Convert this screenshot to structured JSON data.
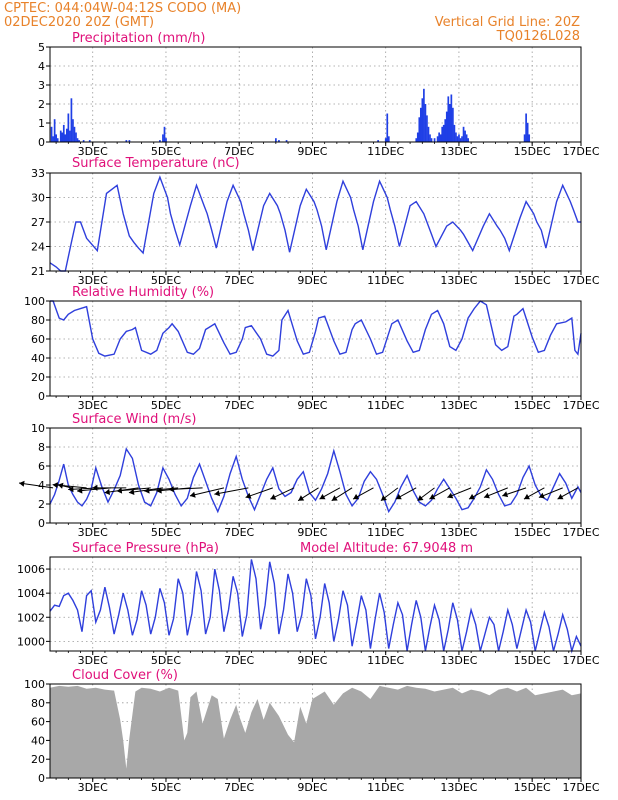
{
  "header": {
    "line1_left": "CPTEC:   044:04W-04:12S   CODO (MA)",
    "line2_left": "02DEC2020 20Z (GMT)",
    "line1_right": "Vertical Grid Line: 20Z",
    "line2_right": "TQ0126L028"
  },
  "colors": {
    "header": "#e8822a",
    "title": "#e0107a",
    "series": "#2f3fdc",
    "cloud": "#a8a8a8"
  },
  "x_axis": {
    "tick_labels": [
      "3DEC",
      "5DEC",
      "7DEC",
      "9DEC",
      "11DEC",
      "13DEC",
      "15DEC",
      "17DEC"
    ],
    "range_hours_from_start": [
      0,
      348
    ]
  },
  "chart_data": [
    {
      "type": "bar",
      "title": "Precipitation (mm/h)",
      "ylim": [
        0,
        5
      ],
      "yticks": [
        "0",
        "1",
        "2",
        "3",
        "4",
        "5"
      ],
      "x": [
        1,
        2,
        3,
        4,
        5,
        7,
        8,
        9,
        10,
        11,
        12,
        13,
        14,
        15,
        16,
        17,
        18,
        19,
        22,
        26,
        50,
        52,
        72,
        74,
        75,
        76,
        148,
        150,
        155,
        215,
        220,
        221,
        222,
        240,
        241,
        242,
        243,
        244,
        245,
        246,
        247,
        248,
        249,
        250,
        252,
        254,
        255,
        256,
        257,
        258,
        259,
        260,
        261,
        262,
        263,
        264,
        265,
        266,
        267,
        268,
        269,
        270,
        271,
        272,
        273,
        274,
        311,
        312,
        313,
        314
      ],
      "values": [
        0.8,
        0.3,
        1.2,
        0.4,
        0.2,
        0.6,
        0.5,
        0.9,
        0.4,
        0.7,
        1.5,
        0.6,
        2.3,
        1.2,
        0.8,
        0.5,
        0.2,
        0.1,
        0.1,
        0.1,
        0.1,
        0.1,
        0.1,
        0.4,
        0.8,
        0.2,
        0.2,
        0.1,
        0.1,
        0.1,
        0.2,
        1.5,
        0.3,
        0.2,
        0.5,
        1.3,
        1.8,
        2.3,
        2.8,
        2.0,
        1.4,
        0.8,
        0.4,
        0.2,
        0.2,
        0.3,
        0.5,
        0.4,
        0.8,
        0.9,
        1.2,
        1.6,
        2.4,
        2.0,
        2.5,
        1.8,
        0.9,
        0.5,
        0.3,
        0.4,
        0.2,
        0.3,
        0.8,
        0.6,
        0.4,
        0.2,
        0.4,
        1.5,
        1.0,
        0.4
      ]
    },
    {
      "type": "line",
      "title": "Surface Temperature (nC)",
      "ylim": [
        21,
        33
      ],
      "yticks": [
        "21",
        "24",
        "27",
        "30",
        "33"
      ],
      "x": [
        0,
        4,
        7,
        10,
        14,
        17,
        20,
        24,
        31,
        37,
        44,
        48,
        52,
        55,
        58,
        61,
        68,
        72,
        77,
        79,
        82,
        85,
        92,
        96,
        101,
        103,
        106,
        109,
        116,
        120,
        125,
        127,
        130,
        133,
        140,
        144,
        149,
        151,
        154,
        157,
        164,
        168,
        173,
        175,
        178,
        181,
        188,
        192,
        197,
        199,
        202,
        205,
        212,
        216,
        221,
        223,
        226,
        229,
        236,
        240,
        245,
        247,
        250,
        253,
        260,
        264,
        269,
        271,
        274,
        277,
        284,
        288,
        293,
        295,
        298,
        301,
        308,
        312,
        317,
        319,
        322,
        325,
        332,
        336,
        341,
        343,
        346,
        348
      ],
      "values": [
        22.0,
        21.5,
        21.0,
        21.0,
        24.5,
        27.0,
        27.0,
        25.0,
        23.5,
        30.5,
        31.5,
        28.0,
        25.3,
        24.5,
        23.8,
        23.2,
        30.5,
        32.5,
        30.0,
        28.0,
        26.0,
        24.2,
        29.0,
        31.5,
        29.0,
        28.0,
        26.0,
        23.8,
        29.5,
        31.5,
        29.5,
        28.0,
        26.0,
        23.5,
        29.0,
        30.5,
        29.0,
        28.0,
        26.0,
        23.3,
        29.0,
        31.0,
        29.5,
        28.5,
        26.5,
        23.6,
        29.5,
        32.0,
        30.0,
        28.5,
        26.5,
        23.6,
        29.5,
        32.0,
        30.0,
        28.5,
        26.5,
        24.0,
        29.0,
        29.5,
        28.0,
        27.0,
        25.5,
        24.0,
        26.5,
        27.0,
        26.0,
        25.5,
        24.5,
        23.5,
        26.5,
        28.0,
        26.5,
        26.0,
        25.0,
        23.5,
        27.5,
        29.5,
        28.0,
        27.0,
        26.0,
        23.8,
        29.5,
        31.5,
        29.5,
        28.5,
        27.0,
        27.0
      ]
    },
    {
      "type": "line",
      "title": "Relative Humidity (%)",
      "ylim": [
        0,
        100
      ],
      "yticks": [
        "0",
        "20",
        "40",
        "60",
        "80",
        "100"
      ],
      "x": [
        0,
        2,
        6,
        9,
        12,
        16,
        20,
        24,
        28,
        32,
        36,
        42,
        46,
        50,
        54,
        56,
        60,
        66,
        70,
        74,
        78,
        80,
        84,
        90,
        94,
        98,
        102,
        104,
        108,
        114,
        118,
        122,
        126,
        128,
        132,
        138,
        142,
        146,
        150,
        152,
        156,
        162,
        166,
        170,
        174,
        176,
        180,
        186,
        190,
        194,
        198,
        200,
        204,
        210,
        214,
        218,
        222,
        224,
        228,
        234,
        238,
        242,
        246,
        250,
        254,
        258,
        262,
        266,
        270,
        274,
        278,
        282,
        286,
        292,
        296,
        300,
        304,
        306,
        310,
        316,
        320,
        324,
        328,
        332,
        338,
        342,
        344,
        346,
        348
      ],
      "values": [
        100,
        100,
        82,
        80,
        86,
        90,
        92,
        94,
        60,
        45,
        42,
        44,
        60,
        68,
        70,
        72,
        48,
        44,
        48,
        66,
        72,
        76,
        68,
        46,
        44,
        50,
        70,
        72,
        76,
        56,
        44,
        46,
        60,
        72,
        74,
        60,
        44,
        42,
        48,
        80,
        90,
        58,
        44,
        46,
        68,
        82,
        84,
        58,
        44,
        46,
        70,
        76,
        80,
        60,
        44,
        46,
        66,
        76,
        80,
        58,
        46,
        48,
        70,
        86,
        90,
        76,
        52,
        48,
        60,
        82,
        92,
        100,
        96,
        54,
        48,
        52,
        84,
        86,
        92,
        62,
        46,
        48,
        64,
        76,
        78,
        82,
        48,
        44,
        66
      ]
    },
    {
      "type": "line",
      "title": "Surface Wind (m/s)",
      "ylim": [
        0,
        10
      ],
      "yticks": [
        "0",
        "2",
        "4",
        "6",
        "8",
        "10"
      ],
      "x": [
        0,
        3,
        6,
        9,
        12,
        15,
        18,
        21,
        24,
        27,
        30,
        34,
        38,
        42,
        46,
        50,
        54,
        58,
        62,
        66,
        70,
        74,
        78,
        82,
        86,
        90,
        94,
        98,
        102,
        106,
        110,
        114,
        118,
        122,
        126,
        130,
        134,
        138,
        142,
        146,
        150,
        154,
        158,
        162,
        166,
        170,
        174,
        178,
        182,
        186,
        190,
        194,
        198,
        202,
        206,
        210,
        214,
        218,
        222,
        226,
        230,
        234,
        238,
        242,
        246,
        250,
        254,
        258,
        262,
        266,
        270,
        274,
        278,
        282,
        286,
        290,
        294,
        298,
        302,
        306,
        310,
        314,
        318,
        322,
        326,
        330,
        334,
        338,
        342,
        346,
        348
      ],
      "values": [
        2.0,
        3.0,
        4.5,
        6.2,
        4.0,
        3.0,
        2.2,
        1.8,
        2.5,
        3.6,
        5.8,
        3.8,
        2.2,
        3.5,
        5.0,
        7.8,
        6.8,
        4.0,
        2.2,
        1.8,
        3.2,
        5.8,
        4.6,
        3.0,
        1.8,
        2.6,
        4.8,
        6.2,
        4.4,
        2.6,
        1.2,
        2.8,
        5.2,
        7.0,
        4.6,
        2.8,
        1.4,
        3.0,
        4.6,
        5.8,
        3.6,
        2.8,
        3.2,
        4.6,
        5.4,
        3.2,
        2.4,
        3.6,
        5.2,
        7.6,
        5.4,
        3.0,
        1.8,
        2.6,
        4.4,
        5.4,
        4.6,
        3.0,
        1.2,
        2.2,
        3.8,
        5.0,
        3.4,
        2.2,
        1.8,
        2.4,
        3.6,
        4.6,
        3.6,
        2.6,
        1.4,
        1.6,
        2.6,
        3.8,
        5.6,
        4.6,
        3.0,
        1.8,
        2.0,
        3.0,
        4.8,
        6.0,
        4.0,
        2.8,
        2.4,
        3.8,
        5.2,
        4.2,
        2.6,
        3.8,
        3.2
      ]
    },
    {
      "type": "line",
      "title": "Surface Pressure (hPa)",
      "annotation": "Model Altitude: 67.9048 m",
      "ylim": [
        999.2,
        1007
      ],
      "yticks": [
        "1000",
        "1002",
        "1004",
        "1006"
      ],
      "x": [
        0,
        3,
        6,
        9,
        12,
        15,
        18,
        21,
        24,
        27,
        30,
        33,
        36,
        39,
        42,
        45,
        48,
        51,
        54,
        57,
        60,
        63,
        66,
        69,
        72,
        75,
        78,
        81,
        84,
        87,
        90,
        93,
        96,
        99,
        102,
        105,
        108,
        111,
        114,
        117,
        120,
        123,
        126,
        129,
        132,
        135,
        138,
        141,
        144,
        147,
        150,
        153,
        156,
        159,
        162,
        165,
        168,
        171,
        174,
        177,
        180,
        183,
        186,
        189,
        192,
        195,
        198,
        201,
        204,
        207,
        210,
        213,
        216,
        219,
        222,
        225,
        228,
        231,
        234,
        237,
        240,
        243,
        246,
        249,
        252,
        255,
        258,
        261,
        264,
        267,
        270,
        273,
        276,
        279,
        282,
        285,
        288,
        291,
        294,
        297,
        300,
        303,
        306,
        309,
        312,
        315,
        318,
        321,
        324,
        327,
        330,
        333,
        336,
        339,
        342,
        345,
        348
      ],
      "values": [
        1002.5,
        1003.0,
        1002.9,
        1003.8,
        1004.0,
        1003.4,
        1002.6,
        1000.8,
        1003.8,
        1004.2,
        1001.6,
        1002.6,
        1004.5,
        1002.8,
        1000.6,
        1002.2,
        1004.0,
        1002.6,
        1000.5,
        1001.8,
        1004.2,
        1003.0,
        1000.6,
        1002.0,
        1004.4,
        1003.2,
        1000.5,
        1001.9,
        1005.2,
        1004.0,
        1000.5,
        1002.3,
        1005.8,
        1004.2,
        1000.6,
        1002.0,
        1006.0,
        1004.2,
        1000.8,
        1002.6,
        1005.4,
        1004.0,
        1000.4,
        1002.2,
        1006.8,
        1005.2,
        1001.0,
        1003.0,
        1006.6,
        1004.8,
        1000.6,
        1002.6,
        1005.6,
        1004.0,
        1000.8,
        1002.2,
        1005.2,
        1003.8,
        1000.2,
        1002.0,
        1004.8,
        1003.2,
        1000.0,
        1001.8,
        1004.2,
        1003.0,
        999.6,
        1001.6,
        1003.8,
        1002.6,
        999.4,
        1001.8,
        1004.0,
        1002.4,
        999.4,
        1001.4,
        1003.2,
        1002.2,
        999.2,
        1001.4,
        1003.4,
        1002.0,
        999.2,
        1001.2,
        1003.0,
        1001.8,
        999.2,
        1001.0,
        1003.2,
        1001.8,
        999.2,
        1000.8,
        1002.6,
        1001.4,
        999.2,
        1000.6,
        1002.0,
        1001.4,
        999.2,
        1000.8,
        1002.6,
        1001.4,
        999.4,
        1001.0,
        1002.6,
        1001.6,
        999.2,
        1000.8,
        1002.4,
        1001.2,
        999.2,
        1000.6,
        1002.2,
        1001.0,
        999.2,
        1000.4,
        999.6
      ]
    },
    {
      "type": "area",
      "title": "Cloud Cover (%)",
      "ylim": [
        0,
        100
      ],
      "yticks": [
        "0",
        "20",
        "40",
        "60",
        "80",
        "100"
      ],
      "x": [
        0,
        6,
        12,
        18,
        24,
        30,
        36,
        42,
        46,
        48,
        50,
        52,
        56,
        60,
        66,
        72,
        78,
        84,
        88,
        90,
        92,
        96,
        100,
        106,
        110,
        114,
        118,
        122,
        124,
        128,
        132,
        136,
        140,
        144,
        150,
        156,
        160,
        164,
        168,
        172,
        176,
        180,
        186,
        192,
        198,
        204,
        210,
        216,
        222,
        228,
        234,
        240,
        246,
        252,
        258,
        264,
        270,
        276,
        282,
        288,
        294,
        300,
        306,
        312,
        318,
        324,
        330,
        336,
        342,
        348
      ],
      "values": [
        96,
        98,
        97,
        98,
        95,
        96,
        94,
        93,
        62,
        40,
        10,
        42,
        92,
        96,
        95,
        92,
        96,
        93,
        40,
        48,
        86,
        92,
        58,
        88,
        84,
        42,
        62,
        78,
        66,
        48,
        70,
        84,
        62,
        80,
        66,
        46,
        38,
        76,
        58,
        84,
        88,
        92,
        78,
        90,
        96,
        92,
        84,
        98,
        96,
        94,
        98,
        96,
        95,
        92,
        94,
        96,
        90,
        94,
        92,
        88,
        94,
        96,
        92,
        96,
        88,
        90,
        92,
        94,
        88,
        90
      ]
    },
    {
      "type": "vector",
      "title": "Surface Wind arrows",
      "x": [
        2,
        14,
        24,
        32,
        40,
        50,
        58,
        66,
        74,
        84,
        92,
        100,
        114,
        130,
        146,
        160,
        176,
        190,
        198,
        212,
        228,
        240,
        252,
        262,
        276,
        288,
        300,
        312,
        324,
        336,
        346
      ],
      "u": [
        -1,
        -0.4,
        -1,
        -0.9,
        -1,
        -1,
        -1,
        -1,
        -1,
        -1,
        -1,
        -1,
        -1,
        -1,
        -0.8,
        -0.7,
        -0.6,
        -0.6,
        -0.6,
        -0.6,
        -0.5,
        -0.6,
        -0.5,
        -0.6,
        -0.7,
        -0.6,
        -0.7,
        -0.7,
        -0.6,
        -0.7,
        -0.6
      ],
      "v": [
        0.3,
        0.2,
        0.2,
        -0.1,
        -0.2,
        0.0,
        -0.3,
        -0.2,
        -0.3,
        -0.2,
        -0.2,
        -0.1,
        -0.5,
        -0.4,
        -0.6,
        -0.7,
        -0.8,
        -0.7,
        -0.8,
        -0.7,
        -0.8,
        -0.7,
        -0.8,
        -0.7,
        -0.6,
        -0.7,
        -0.6,
        -0.5,
        -0.7,
        -0.6,
        -0.7
      ]
    }
  ]
}
